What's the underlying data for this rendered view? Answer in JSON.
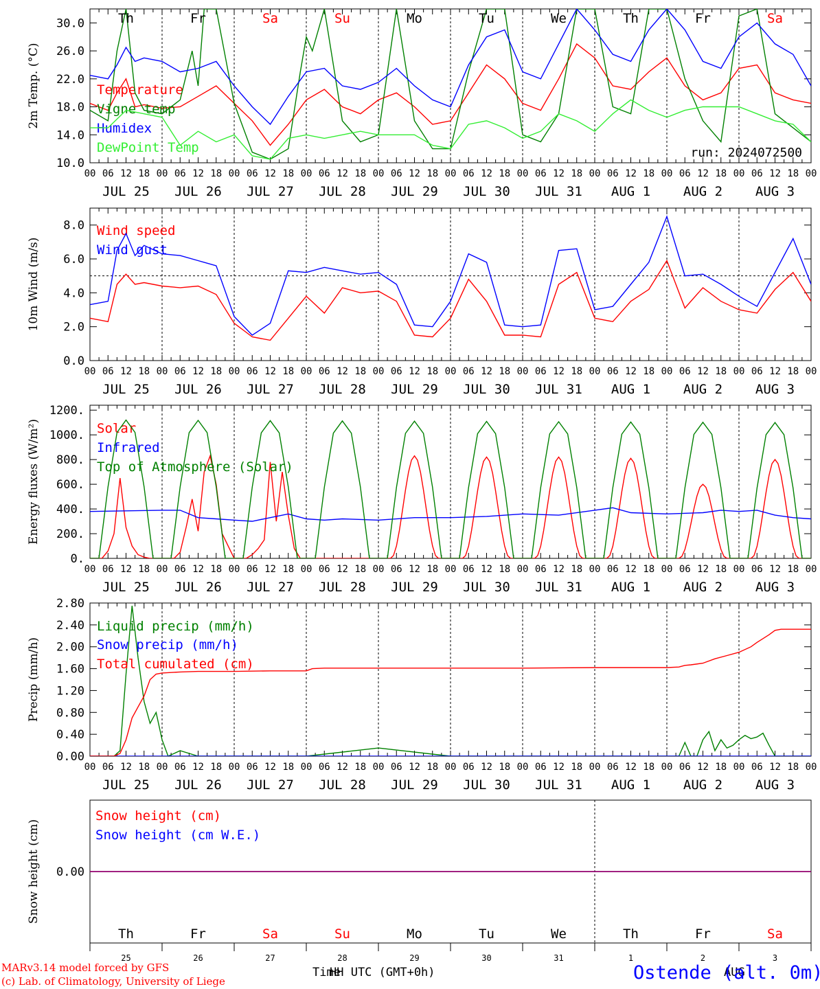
{
  "days": {
    "labels": [
      "JUL 25",
      "JUL 26",
      "JUL 27",
      "JUL 28",
      "JUL 29",
      "JUL 30",
      "JUL 31",
      "AUG  1",
      "AUG  2",
      "AUG  3"
    ],
    "hour_ticks": [
      "00",
      "06",
      "12",
      "18"
    ],
    "final_hour": "00",
    "weekdays": [
      "Th",
      "Fr",
      "Sa",
      "Su",
      "Mo",
      "Tu",
      "We",
      "Th",
      "Fr",
      "Sa"
    ],
    "weekday_colors": [
      "#000000",
      "#000000",
      "#ff0000",
      "#ff0000",
      "#000000",
      "#000000",
      "#000000",
      "#000000",
      "#000000",
      "#ff0000"
    ],
    "day_numbers": [
      "25",
      "26",
      "27",
      "28",
      "29",
      "30",
      "31",
      "1",
      "2",
      "3"
    ],
    "month_mark": "AUG"
  },
  "footer": {
    "credit_line1": "MARv3.14 model forced by GFS",
    "credit_line2": "(c) Lab. of Climatology, University of Liege",
    "xlabel_a": "Time",
    "xlabel_b": "HH UTC (GMT+0h)",
    "station": "Ostende (alt. 0m)"
  },
  "colors": {
    "red": "#ff0000",
    "green": "#008000",
    "blue": "#0000ff",
    "lightgreen": "#33ee33",
    "purple": "#800080",
    "black": "#000000"
  },
  "chart_data": [
    {
      "type": "line",
      "ylabel": "2m Temp. (°C)",
      "ylim": [
        10,
        32
      ],
      "yticks": [
        "10.0",
        "14.0",
        "18.0",
        "22.0",
        "26.0",
        "30.0"
      ],
      "annotation": "run: 2024072500",
      "x_unit": "hours since JUL 25 00 UTC",
      "series": [
        {
          "name": "Temperature",
          "color": "#ff0000",
          "x": [
            0,
            6,
            9,
            12,
            15,
            18,
            24,
            30,
            36,
            42,
            48,
            54,
            60,
            66,
            72,
            78,
            84,
            90,
            96,
            102,
            108,
            114,
            120,
            126,
            132,
            138,
            144,
            150,
            156,
            162,
            168,
            174,
            180,
            186,
            192,
            198,
            204,
            210,
            216,
            222,
            228,
            234,
            240
          ],
          "y": [
            18.5,
            17.5,
            20,
            22,
            18,
            18.3,
            17.8,
            18,
            19.5,
            21,
            18.5,
            16,
            12.5,
            15.5,
            19,
            20.5,
            18,
            17,
            19,
            20,
            18,
            15.5,
            16,
            20,
            24,
            22,
            18.5,
            17.5,
            22,
            27,
            25,
            21,
            20.5,
            23,
            25,
            21,
            19,
            20,
            23.5,
            24,
            20,
            19,
            18.5
          ]
        },
        {
          "name": "Vigne temp",
          "color": "#008000",
          "x": [
            0,
            6,
            9,
            12,
            15,
            18,
            24,
            30,
            34,
            36,
            38,
            42,
            48,
            54,
            60,
            66,
            70,
            72,
            74,
            78,
            84,
            90,
            96,
            102,
            108,
            114,
            120,
            126,
            132,
            138,
            144,
            150,
            156,
            162,
            168,
            174,
            180,
            186,
            192,
            198,
            204,
            210,
            216,
            222,
            228,
            234,
            240
          ],
          "y": [
            17.5,
            16,
            26,
            32,
            20,
            17.5,
            17,
            19,
            26,
            21,
            32,
            32,
            18.5,
            11.5,
            10.5,
            12,
            23,
            28,
            26,
            32,
            16,
            13,
            14,
            32,
            16,
            12,
            12,
            23,
            32,
            32,
            14,
            13,
            17,
            32,
            32,
            18,
            17,
            32,
            32,
            22,
            16,
            13,
            31,
            32,
            17,
            15,
            13
          ]
        },
        {
          "name": "Humidex",
          "color": "#0000ff",
          "x": [
            0,
            6,
            9,
            12,
            15,
            18,
            24,
            30,
            36,
            42,
            48,
            54,
            60,
            66,
            72,
            78,
            84,
            90,
            96,
            102,
            108,
            114,
            120,
            126,
            132,
            138,
            144,
            150,
            156,
            162,
            168,
            174,
            180,
            186,
            192,
            198,
            204,
            210,
            216,
            222,
            228,
            234,
            240
          ],
          "y": [
            22.5,
            22,
            24,
            26.5,
            24.5,
            25,
            24.5,
            23,
            23.5,
            24.5,
            21,
            18,
            15.5,
            19.5,
            23,
            23.5,
            21,
            20.5,
            21.5,
            23.5,
            21,
            19,
            18,
            24,
            28,
            29,
            23,
            22,
            27,
            32,
            29,
            25.5,
            24.5,
            29,
            32,
            29,
            24.5,
            23.5,
            28,
            30,
            27,
            25.5,
            21
          ]
        },
        {
          "name": "DewPoint Temp",
          "color": "#33ee33",
          "x": [
            0,
            6,
            12,
            18,
            24,
            30,
            36,
            42,
            48,
            54,
            60,
            66,
            72,
            78,
            84,
            90,
            96,
            102,
            108,
            114,
            120,
            126,
            132,
            138,
            144,
            150,
            156,
            162,
            168,
            174,
            180,
            186,
            192,
            198,
            204,
            210,
            216,
            222,
            228,
            234,
            240
          ],
          "y": [
            15,
            15,
            17.5,
            17,
            16.5,
            12.5,
            14.5,
            13,
            14,
            11,
            10.5,
            13.5,
            14,
            13.5,
            14,
            14.5,
            14,
            14,
            14,
            12.5,
            12,
            15.5,
            16,
            15,
            13.5,
            14.5,
            17,
            16,
            14.5,
            17,
            19,
            17.5,
            16.5,
            17.5,
            18,
            18,
            18,
            17,
            16,
            15.5,
            13
          ]
        }
      ]
    },
    {
      "type": "line",
      "ylabel": "10m Wind (m/s)",
      "ylim": [
        0,
        9
      ],
      "yticks": [
        "0.0",
        "2.0",
        "4.0",
        "6.0",
        "8.0"
      ],
      "ref_line": 5,
      "x_unit": "hours since JUL 25 00 UTC",
      "series": [
        {
          "name": "Wind speed",
          "color": "#ff0000",
          "x": [
            0,
            6,
            9,
            12,
            15,
            18,
            24,
            30,
            36,
            42,
            48,
            54,
            60,
            66,
            72,
            78,
            84,
            90,
            96,
            102,
            108,
            114,
            120,
            126,
            132,
            138,
            144,
            150,
            156,
            162,
            168,
            174,
            180,
            186,
            192,
            198,
            204,
            210,
            216,
            222,
            228,
            234,
            240
          ],
          "y": [
            2.5,
            2.3,
            4.5,
            5.1,
            4.5,
            4.6,
            4.4,
            4.3,
            4.4,
            3.9,
            2.2,
            1.4,
            1.2,
            2.5,
            3.8,
            2.8,
            4.3,
            4,
            4.1,
            3.5,
            1.5,
            1.4,
            2.5,
            4.8,
            3.5,
            1.5,
            1.5,
            1.4,
            4.5,
            5.2,
            2.5,
            2.3,
            3.5,
            4.2,
            5.9,
            3.1,
            4.3,
            3.5,
            3,
            2.8,
            4.2,
            5.2,
            3.5
          ]
        },
        {
          "name": "Wind gust",
          "color": "#0000ff",
          "x": [
            0,
            6,
            9,
            12,
            15,
            18,
            24,
            30,
            36,
            42,
            48,
            54,
            60,
            66,
            72,
            78,
            84,
            90,
            96,
            102,
            108,
            114,
            120,
            126,
            132,
            138,
            144,
            150,
            156,
            162,
            168,
            174,
            180,
            186,
            192,
            198,
            204,
            210,
            216,
            222,
            228,
            234,
            240
          ],
          "y": [
            3.3,
            3.5,
            6.5,
            7.5,
            6.2,
            6.8,
            6.3,
            6.2,
            5.9,
            5.6,
            2.6,
            1.5,
            2.2,
            5.3,
            5.2,
            5.5,
            5.3,
            5.1,
            5.2,
            4.5,
            2.1,
            2,
            3.5,
            6.3,
            5.8,
            2.1,
            2,
            2.1,
            6.5,
            6.6,
            3,
            3.2,
            4.5,
            5.8,
            8.5,
            5,
            5.1,
            4.5,
            3.8,
            3.2,
            5.2,
            7.2,
            4.5
          ]
        }
      ]
    },
    {
      "type": "line",
      "ylabel": "Energy fluxes (W/m²)",
      "ylim": [
        0,
        1240
      ],
      "yticks": [
        "0.",
        "200.",
        "400.",
        "600.",
        "800.",
        "1000.",
        "1200."
      ],
      "x_unit": "hours since JUL 25 00 UTC",
      "series": [
        {
          "name": "Solar",
          "color": "#ff0000",
          "x": [
            0,
            4,
            6,
            8,
            10,
            12,
            14,
            16,
            18,
            20,
            24,
            28,
            30,
            32,
            34,
            36,
            38,
            40,
            42,
            44,
            48,
            52,
            54,
            56,
            58,
            60,
            62,
            64,
            66,
            68,
            70,
            72,
            76,
            80,
            84,
            88,
            90,
            92,
            94,
            96
          ],
          "y": [
            0,
            0,
            60,
            200,
            650,
            250,
            100,
            30,
            10,
            0,
            0,
            0,
            50,
            250,
            480,
            220,
            700,
            830,
            600,
            200,
            0,
            0,
            30,
            80,
            150,
            780,
            300,
            700,
            350,
            80,
            0,
            0,
            0,
            0,
            0,
            0,
            0,
            0,
            0,
            0
          ]
        },
        {
          "name": "Infrared",
          "color": "#0000ff",
          "x": [
            0,
            24,
            30,
            36,
            42,
            48,
            54,
            60,
            66,
            72,
            78,
            84,
            96,
            108,
            120,
            132,
            144,
            156,
            168,
            174,
            180,
            192,
            204,
            210,
            216,
            222,
            228,
            234,
            240
          ],
          "y": [
            380,
            390,
            390,
            330,
            320,
            310,
            300,
            330,
            360,
            320,
            310,
            320,
            310,
            330,
            330,
            340,
            360,
            350,
            390,
            410,
            370,
            360,
            370,
            390,
            380,
            390,
            350,
            330,
            320
          ]
        },
        {
          "name": "Top of Atmosphere (Solar)",
          "color": "#008000",
          "x": [
            0,
            3,
            6,
            9,
            12,
            15,
            18,
            21,
            24
          ],
          "y": [
            0,
            0,
            580,
            1020,
            1120,
            1020,
            580,
            0,
            0
          ]
        }
      ]
    },
    {
      "type": "line",
      "ylabel": "Precip (mm/h)",
      "ylim": [
        0,
        2.8
      ],
      "yticks": [
        "0.00",
        "0.40",
        "0.80",
        "1.20",
        "1.60",
        "2.00",
        "2.40",
        "2.80"
      ],
      "x_unit": "hours since JUL 25 00 UTC",
      "series": [
        {
          "name": "Liquid precip (mm/h)",
          "color": "#008000",
          "x": [
            0,
            8,
            10,
            12,
            14,
            16,
            18,
            20,
            22,
            24,
            26,
            30,
            36,
            48,
            72,
            96,
            120,
            144,
            168,
            180,
            192,
            196,
            198,
            200,
            202,
            204,
            206,
            208,
            210,
            212,
            214,
            216,
            218,
            220,
            222,
            224,
            226,
            228,
            230,
            232,
            234,
            240
          ],
          "y": [
            0,
            0,
            0.1,
            1.5,
            2.75,
            1.8,
            1,
            0.6,
            0.8,
            0.3,
            0,
            0.1,
            0,
            0,
            0,
            0.15,
            0,
            0,
            0,
            0,
            0,
            0,
            0.25,
            0,
            0,
            0.3,
            0.45,
            0.1,
            0.3,
            0.15,
            0.2,
            0.3,
            0.38,
            0.32,
            0.35,
            0.42,
            0.2,
            0,
            0,
            0,
            0,
            0
          ]
        },
        {
          "name": "Snow precip (mm/h)",
          "color": "#0000ff",
          "x": [
            0,
            240
          ],
          "y": [
            0,
            0
          ]
        },
        {
          "name": "Total cumulated (cm)",
          "color": "#ff0000",
          "x": [
            0,
            8,
            10,
            12,
            14,
            16,
            18,
            20,
            22,
            24,
            30,
            36,
            48,
            60,
            72,
            74,
            78,
            84,
            96,
            120,
            144,
            168,
            180,
            192,
            196,
            198,
            200,
            204,
            208,
            212,
            216,
            220,
            222,
            224,
            226,
            228,
            230,
            234,
            240
          ],
          "y": [
            0,
            0,
            0.05,
            0.3,
            0.7,
            0.9,
            1.1,
            1.4,
            1.5,
            1.52,
            1.54,
            1.55,
            1.55,
            1.56,
            1.56,
            1.6,
            1.61,
            1.61,
            1.61,
            1.61,
            1.61,
            1.62,
            1.62,
            1.62,
            1.63,
            1.66,
            1.67,
            1.7,
            1.78,
            1.84,
            1.9,
            2.0,
            2.08,
            2.15,
            2.22,
            2.3,
            2.32,
            2.32,
            2.32
          ]
        }
      ]
    },
    {
      "type": "line",
      "ylabel": "Snow height (cm)",
      "ylim": [
        -1,
        1
      ],
      "yticks": [
        "0.00"
      ],
      "x_unit": "hours since JUL 25 00 UTC",
      "series": [
        {
          "name": "Snow height (cm)",
          "color": "#ff0000",
          "x": [
            0,
            240
          ],
          "y": [
            0,
            0
          ]
        },
        {
          "name": "Snow height (cm W.E.)",
          "color": "#0000ff",
          "x": [
            0,
            240
          ],
          "y": [
            0,
            0
          ]
        }
      ]
    }
  ]
}
